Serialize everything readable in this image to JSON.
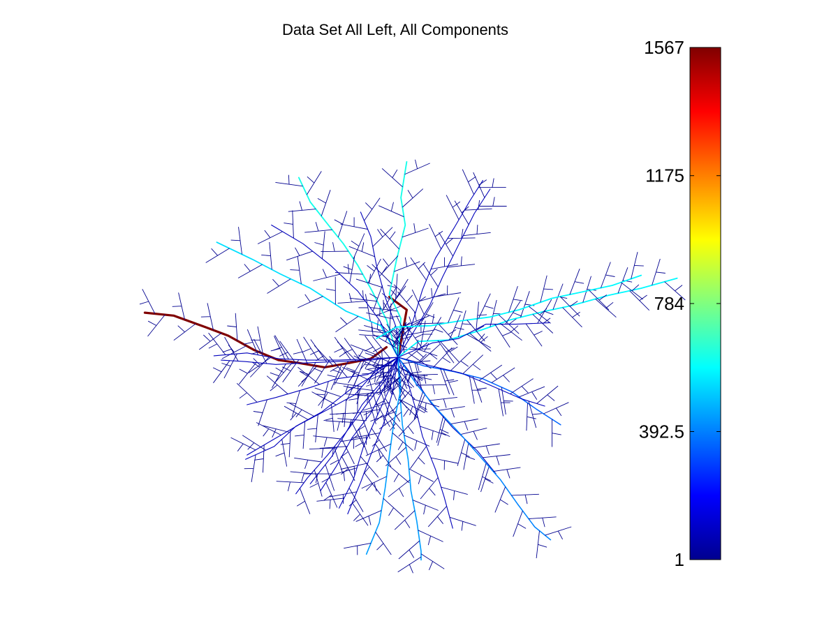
{
  "title": "Data Set All Left, All Components",
  "chart_data": {
    "type": "tree",
    "title": "Data Set All Left, All Components",
    "xlabel": "",
    "ylabel": "",
    "grid": false,
    "legend": "none",
    "colorbar": {
      "colormap": "jet",
      "clim": [
        1,
        1567
      ],
      "ticks": [
        1,
        392.5,
        784,
        1175,
        1567
      ],
      "tick_labels": [
        "1",
        "392.5",
        "784",
        "1175",
        "1567"
      ],
      "placement": "right"
    },
    "branches": [
      {
        "name": "",
        "value": 1567,
        "stem": [
          [
            -0.8,
            0.7
          ],
          [
            -1.9,
            -0.1
          ],
          [
            -3.4,
            -0.4
          ],
          [
            -5.1,
            -0.7
          ],
          [
            -6.9,
            -0.4
          ],
          [
            -8.3,
            -0.2
          ],
          [
            -10.0,
            0.5
          ],
          [
            -11.8,
            1.5
          ],
          [
            -13.4,
            2.1
          ],
          [
            -15.6,
            2.9
          ],
          [
            -17.6,
            3.1
          ]
        ],
        "side": 1
      },
      {
        "name": "",
        "value": 1567,
        "stem": [
          [
            0.0,
            0.0
          ],
          [
            0.6,
            3.3
          ],
          [
            -0.6,
            4.2
          ]
        ],
        "side": 0
      },
      {
        "name": "",
        "value": 540,
        "stem": [
          [
            0.0,
            0.0
          ],
          [
            -1.2,
            2.2
          ],
          [
            -3.6,
            3.2
          ],
          [
            -6.1,
            4.8
          ],
          [
            -8.2,
            5.8
          ],
          [
            -10.1,
            6.8
          ],
          [
            -12.6,
            8.0
          ]
        ],
        "side": -1
      },
      {
        "name": "",
        "value": 620,
        "stem": [
          [
            0.0,
            0.0
          ],
          [
            -0.8,
            2.6
          ],
          [
            -1.8,
            4.6
          ],
          [
            -2.8,
            6.4
          ],
          [
            -3.8,
            7.9
          ],
          [
            -5.0,
            9.4
          ],
          [
            -6.1,
            10.8
          ],
          [
            -6.9,
            12.5
          ]
        ],
        "side": -1
      },
      {
        "name": "",
        "value": 620,
        "stem": [
          [
            0.0,
            0.0
          ],
          [
            0.2,
            2.7
          ],
          [
            -0.6,
            4.4
          ],
          [
            -0.1,
            6.8
          ],
          [
            0.5,
            9.2
          ],
          [
            0.2,
            11.1
          ],
          [
            0.6,
            13.6
          ]
        ],
        "side": 1
      },
      {
        "name": "",
        "value": 80,
        "stem": [
          [
            0.0,
            0.0
          ],
          [
            -1.3,
            2.6
          ],
          [
            -2.8,
            4.6
          ],
          [
            -4.7,
            6.4
          ],
          [
            -6.6,
            7.9
          ],
          [
            -8.8,
            9.2
          ]
        ],
        "side": -1
      },
      {
        "name": "",
        "value": 80,
        "stem": [
          [
            0.0,
            0.0
          ],
          [
            -0.1,
            2.0
          ],
          [
            -0.9,
            4.2
          ],
          [
            -1.5,
            6.4
          ],
          [
            -1.9,
            8.4
          ],
          [
            -2.6,
            10.1
          ]
        ],
        "side": 1
      },
      {
        "name": "",
        "value": 80,
        "stem": [
          [
            0.0,
            0.0
          ],
          [
            1.0,
            2.4
          ],
          [
            1.7,
            4.7
          ],
          [
            2.6,
            6.9
          ],
          [
            3.9,
            9.0
          ],
          [
            5.0,
            10.9
          ],
          [
            5.9,
            12.3
          ]
        ],
        "side": 1
      },
      {
        "name": "",
        "value": 80,
        "stem": [
          [
            0.0,
            0.0
          ],
          [
            1.1,
            1.8
          ],
          [
            2.2,
            3.6
          ],
          [
            3.1,
            5.6
          ],
          [
            4.2,
            7.8
          ],
          [
            5.3,
            10.0
          ],
          [
            6.4,
            11.7
          ]
        ],
        "side": -1
      },
      {
        "name": "",
        "value": 580,
        "stem": [
          [
            0.0,
            0.0
          ],
          [
            1.4,
            1.1
          ],
          [
            3.5,
            1.2
          ],
          [
            5.8,
            1.9
          ],
          [
            7.8,
            2.6
          ],
          [
            10.2,
            3.2
          ],
          [
            12.1,
            3.6
          ],
          [
            14.6,
            4.3
          ],
          [
            16.9,
            4.8
          ],
          [
            19.4,
            5.5
          ]
        ],
        "side": 1
      },
      {
        "name": "",
        "value": 580,
        "stem": [
          [
            -1.5,
            1.3
          ],
          [
            -0.1,
            2.1
          ],
          [
            2.3,
            2.2
          ],
          [
            4.1,
            2.5
          ],
          [
            6.4,
            2.8
          ],
          [
            8.4,
            3.3
          ],
          [
            10.7,
            4.1
          ],
          [
            12.6,
            4.5
          ],
          [
            14.9,
            5.0
          ],
          [
            16.9,
            5.7
          ]
        ],
        "side": -1
      },
      {
        "name": "",
        "value": 350,
        "stem": [
          [
            0.0,
            0.0
          ],
          [
            1.8,
            -0.6
          ],
          [
            3.9,
            -1.0
          ],
          [
            5.9,
            -1.5
          ],
          [
            7.9,
            -2.4
          ],
          [
            9.6,
            -3.6
          ],
          [
            11.3,
            -4.7
          ]
        ],
        "side": 1
      },
      {
        "name": "",
        "value": 80,
        "stem": [
          [
            0.0,
            0.0
          ],
          [
            2.4,
            1.0
          ],
          [
            4.2,
            1.3
          ],
          [
            6.1,
            2.3
          ],
          [
            8.2,
            2.3
          ],
          [
            10.5,
            2.4
          ]
        ],
        "side": -1
      },
      {
        "name": "",
        "value": 80,
        "stem": [
          [
            0.0,
            0.0
          ],
          [
            2.3,
            -0.6
          ],
          [
            4.4,
            -1.1
          ],
          [
            6.3,
            -1.9
          ],
          [
            8.6,
            -2.9
          ],
          [
            10.2,
            -3.4
          ]
        ],
        "side": -1
      },
      {
        "name": "",
        "value": 80,
        "stem": [
          [
            0.0,
            0.0
          ],
          [
            1.1,
            -1.4
          ],
          [
            2.3,
            -3.2
          ],
          [
            3.8,
            -4.9
          ],
          [
            5.5,
            -6.5
          ],
          [
            6.8,
            -8.1
          ]
        ],
        "side": 1
      },
      {
        "name": "",
        "value": 400,
        "stem": [
          [
            0.0,
            0.0
          ],
          [
            1.3,
            -1.9
          ],
          [
            2.7,
            -3.6
          ],
          [
            4.2,
            -5.2
          ],
          [
            5.7,
            -6.9
          ],
          [
            7.1,
            -8.5
          ],
          [
            8.3,
            -10.2
          ],
          [
            9.5,
            -11.8
          ],
          [
            10.6,
            -12.7
          ]
        ],
        "side": -1
      },
      {
        "name": "",
        "value": 440,
        "stem": [
          [
            0.0,
            0.0
          ],
          [
            0.1,
            -2.2
          ],
          [
            0.3,
            -4.7
          ],
          [
            0.7,
            -7.1
          ],
          [
            0.9,
            -9.3
          ],
          [
            1.3,
            -11.4
          ],
          [
            1.6,
            -13.5
          ],
          [
            1.6,
            -14.1
          ]
        ],
        "side": 1
      },
      {
        "name": "",
        "value": 80,
        "stem": [
          [
            0.0,
            0.0
          ],
          [
            0.7,
            -1.8
          ],
          [
            1.2,
            -3.5
          ],
          [
            1.7,
            -5.5
          ],
          [
            2.6,
            -7.8
          ],
          [
            3.2,
            -9.7
          ],
          [
            3.8,
            -11.9
          ]
        ],
        "side": -1
      },
      {
        "name": "",
        "value": 440,
        "stem": [
          [
            0.0,
            0.0
          ],
          [
            0.2,
            -2.2
          ],
          [
            -0.3,
            -4.6
          ],
          [
            -0.6,
            -6.8
          ],
          [
            -0.9,
            -9.1
          ],
          [
            -1.3,
            -11.5
          ],
          [
            -2.2,
            -13.7
          ]
        ],
        "side": 1
      },
      {
        "name": "",
        "value": 80,
        "stem": [
          [
            0.0,
            0.0
          ],
          [
            -0.4,
            -2.5
          ],
          [
            -1.0,
            -4.6
          ],
          [
            -1.9,
            -6.8
          ],
          [
            -2.6,
            -8.7
          ],
          [
            -3.5,
            -10.9
          ]
        ],
        "side": -1
      },
      {
        "name": "",
        "value": 80,
        "stem": [
          [
            0.0,
            0.0
          ],
          [
            -0.6,
            -2.2
          ],
          [
            -1.6,
            -4.4
          ],
          [
            -2.4,
            -6.2
          ],
          [
            -3.1,
            -8.5
          ],
          [
            -4.1,
            -10.5
          ]
        ],
        "side": 1
      },
      {
        "name": "",
        "value": 80,
        "stem": [
          [
            0.0,
            0.0
          ],
          [
            -0.8,
            -1.8
          ],
          [
            -1.9,
            -3.9
          ],
          [
            -3.2,
            -5.6
          ],
          [
            -4.3,
            -7.6
          ],
          [
            -5.4,
            -9.3
          ]
        ],
        "side": -1
      },
      {
        "name": "",
        "value": 80,
        "stem": [
          [
            0.0,
            0.0
          ],
          [
            -0.9,
            -1.6
          ],
          [
            -2.2,
            -3.3
          ],
          [
            -3.6,
            -5.2
          ],
          [
            -4.6,
            -6.9
          ],
          [
            -6.1,
            -8.8
          ]
        ],
        "side": 1
      },
      {
        "name": "",
        "value": 80,
        "stem": [
          [
            0.0,
            0.0
          ],
          [
            -1.3,
            -1.9
          ],
          [
            -2.5,
            -3.3
          ],
          [
            -3.6,
            -5.2
          ],
          [
            -4.9,
            -6.8
          ],
          [
            -6.3,
            -8.4
          ],
          [
            -7.1,
            -9.5
          ]
        ],
        "side": -1
      },
      {
        "name": "",
        "value": 80,
        "stem": [
          [
            0.0,
            0.0
          ],
          [
            -1.6,
            -1.0
          ],
          [
            -3.0,
            -2.6
          ],
          [
            -5.0,
            -3.7
          ],
          [
            -6.9,
            -4.7
          ],
          [
            -8.8,
            -5.8
          ],
          [
            -10.5,
            -6.8
          ]
        ],
        "side": 1
      },
      {
        "name": "",
        "value": 80,
        "stem": [
          [
            0.0,
            0.0
          ],
          [
            -1.6,
            -1.2
          ],
          [
            -3.4,
            -2.3
          ],
          [
            -5.3,
            -3.8
          ],
          [
            -7.1,
            -4.8
          ],
          [
            -8.6,
            -6.2
          ],
          [
            -10.6,
            -7.1
          ]
        ],
        "side": -1
      },
      {
        "name": "",
        "value": 80,
        "stem": [
          [
            0.0,
            0.0
          ],
          [
            -1.8,
            -0.1
          ],
          [
            -4.1,
            -0.2
          ],
          [
            -6.3,
            -0.2
          ],
          [
            -8.3,
            -0.1
          ],
          [
            -10.5,
            0.3
          ],
          [
            -12.8,
            0.1
          ]
        ],
        "side": 1
      },
      {
        "name": "",
        "value": 80,
        "stem": [
          [
            0.0,
            0.0
          ],
          [
            -1.9,
            -0.2
          ],
          [
            -4.3,
            -0.3
          ],
          [
            -6.5,
            -0.4
          ],
          [
            -8.5,
            -0.5
          ],
          [
            -10.6,
            -0.3
          ],
          [
            -12.3,
            -0.2
          ]
        ],
        "side": -1
      },
      {
        "name": "",
        "value": 80,
        "stem": [
          [
            0.0,
            0.0
          ],
          [
            -2.1,
            -1.2
          ],
          [
            -4.3,
            -1.5
          ],
          [
            -6.1,
            -2.1
          ],
          [
            -8.5,
            -2.8
          ],
          [
            -10.5,
            -3.3
          ]
        ],
        "side": 1
      }
    ]
  }
}
